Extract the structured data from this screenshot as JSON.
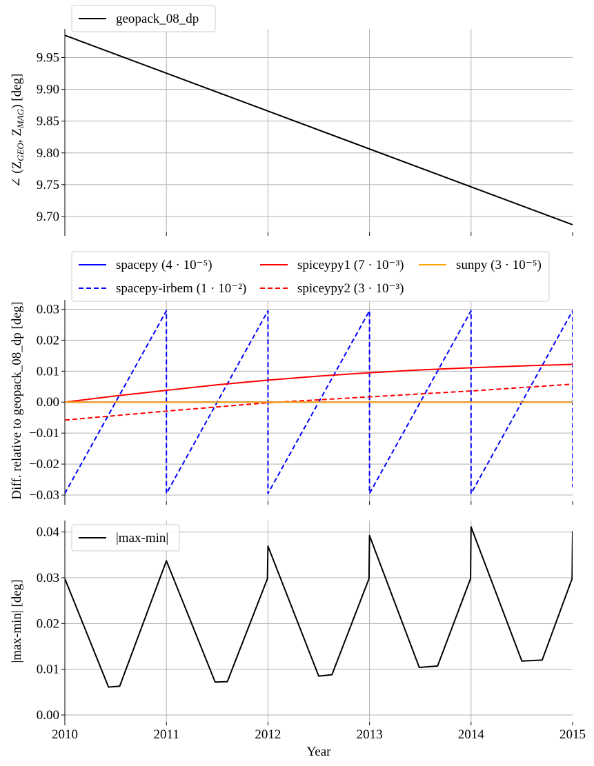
{
  "chart_data": [
    {
      "type": "line",
      "title": "",
      "xlabel": "",
      "ylabel": "∠ (Z_GEO, Z_MAG) [deg]",
      "ylabel_parts": {
        "prefix": "∠ (Z",
        "sub1": "GEO",
        "mid": ", Z",
        "sub2": "MAG",
        "suffix": ") [deg]"
      },
      "xlim": [
        2010,
        2015
      ],
      "ylim": [
        9.675,
        9.995
      ],
      "yticks": [
        9.7,
        9.75,
        9.8,
        9.85,
        9.9,
        9.95
      ],
      "ytick_labels": [
        "9.70",
        "9.75",
        "9.80",
        "9.85",
        "9.90",
        "9.95"
      ],
      "grid": true,
      "legend": "top-left, above plot",
      "series": [
        {
          "name": "geopack_08_dp",
          "color": "#000000",
          "dash": "solid",
          "x": [
            2010,
            2015
          ],
          "y": [
            9.985,
            9.687
          ]
        }
      ]
    },
    {
      "type": "line",
      "title": "",
      "xlabel": "",
      "ylabel": "Diff. relative to geopack_08_dp [deg]",
      "xlim": [
        2010,
        2015
      ],
      "ylim": [
        -0.032,
        0.033
      ],
      "yticks": [
        -0.03,
        -0.02,
        -0.01,
        0.0,
        0.01,
        0.02,
        0.03
      ],
      "ytick_labels": [
        "−0.03",
        "−0.02",
        "−0.01",
        "0.00",
        "0.01",
        "0.02",
        "0.03"
      ],
      "grid": true,
      "legend": "top, above plot, 3 columns",
      "series": [
        {
          "name": "spacepy",
          "exp": "(4 · 10⁻⁵)",
          "color": "#0000ff",
          "dash": "solid",
          "x": [
            2010,
            2015
          ],
          "y": [
            0.0,
            0.0
          ]
        },
        {
          "name": "spacepy-irbem",
          "exp": "(1 · 10⁻²)",
          "color": "#0000ff",
          "dash": "dashed",
          "x": [
            2010,
            2011,
            2011,
            2012,
            2012,
            2013,
            2013,
            2014,
            2014,
            2015,
            2015
          ],
          "y": [
            -0.0295,
            0.0295,
            -0.0295,
            0.0295,
            -0.0295,
            0.0295,
            -0.0295,
            0.0295,
            -0.0295,
            0.0295,
            -0.0275
          ]
        },
        {
          "name": "spiceypy1",
          "exp": "(7 · 10⁻³)",
          "color": "#ff0000",
          "dash": "solid",
          "x": [
            2010,
            2010.5,
            2011,
            2011.5,
            2012,
            2012.5,
            2013,
            2013.5,
            2014,
            2014.5,
            2015
          ],
          "y": [
            0.0,
            0.002,
            0.0038,
            0.0056,
            0.0071,
            0.0084,
            0.0095,
            0.0104,
            0.0111,
            0.0117,
            0.0122
          ]
        },
        {
          "name": "spiceypy2",
          "exp": "(3 · 10⁻³)",
          "color": "#ff0000",
          "dash": "dashed",
          "x": [
            2010,
            2011,
            2012,
            2013,
            2014,
            2015
          ],
          "y": [
            -0.0058,
            -0.0029,
            -0.0002,
            0.0017,
            0.0036,
            0.0058
          ]
        },
        {
          "name": "sunpy",
          "exp": "(3 · 10⁻⁵)",
          "color": "#ffa500",
          "dash": "solid",
          "x": [
            2010,
            2015
          ],
          "y": [
            0.0,
            0.0
          ]
        }
      ]
    },
    {
      "type": "line",
      "title": "",
      "xlabel": "Year",
      "ylabel": "|max-min| [deg]",
      "xlim": [
        2010,
        2015
      ],
      "ylim": [
        -0.0015,
        0.0425
      ],
      "yticks": [
        0.0,
        0.01,
        0.02,
        0.03,
        0.04
      ],
      "ytick_labels": [
        "0.00",
        "0.01",
        "0.02",
        "0.03",
        "0.04"
      ],
      "xticks": [
        2010,
        2011,
        2012,
        2013,
        2014,
        2015
      ],
      "xtick_labels": [
        "2010",
        "2011",
        "2012",
        "2013",
        "2014",
        "2015"
      ],
      "grid": true,
      "legend": "top-left",
      "series": [
        {
          "name": "|max-min|",
          "color": "#000000",
          "dash": "solid",
          "x": [
            2010,
            2010.43,
            2010.54,
            2011,
            2011.48,
            2011.6,
            2011.995,
            2012,
            2012.5,
            2012.63,
            2012.995,
            2013,
            2013.49,
            2013.67,
            2013.995,
            2014,
            2014.5,
            2014.7,
            2014.995,
            2015
          ],
          "y": [
            0.0298,
            0.0061,
            0.0063,
            0.0337,
            0.0072,
            0.0073,
            0.0298,
            0.0369,
            0.0085,
            0.0088,
            0.0298,
            0.0392,
            0.0104,
            0.0107,
            0.0298,
            0.0411,
            0.0118,
            0.012,
            0.0298,
            0.0402
          ]
        }
      ]
    }
  ]
}
